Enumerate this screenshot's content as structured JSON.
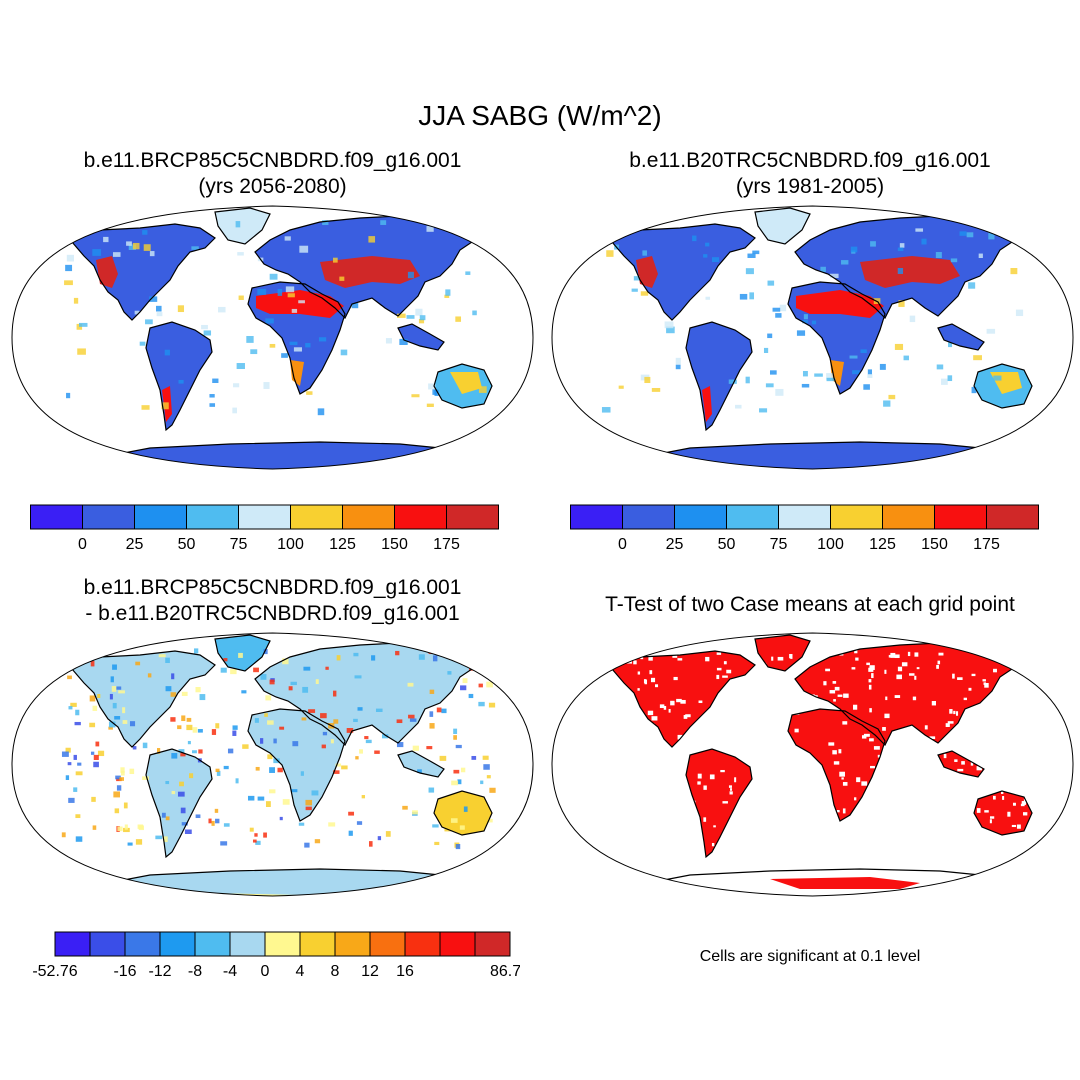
{
  "main_title": "JJA SABG (W/m^2)",
  "panels": [
    {
      "id": "case1",
      "title_line1": "b.e11.BRCP85C5CNBDRD.f09_g16.001",
      "title_line2": "(yrs 2056-2080)"
    },
    {
      "id": "case2",
      "title_line1": "b.e11.B20TRC5CNBDRD.f09_g16.001",
      "title_line2": "(yrs 1981-2005)"
    },
    {
      "id": "diff",
      "title_line1": "b.e11.BRCP85C5CNBDRD.f09_g16.001",
      "title_line2": "- b.e11.B20TRC5CNBDRD.f09_g16.001"
    },
    {
      "id": "ttest",
      "title_line1": "T-Test of two Case means at each grid point"
    }
  ],
  "colorbar_main": {
    "colors": [
      "#3a1ff5",
      "#3a5ee0",
      "#1e90f0",
      "#4fbcf0",
      "#cfeaf8",
      "#f8d030",
      "#f89010",
      "#f81010",
      "#d02828"
    ],
    "labels": [
      "0",
      "25",
      "50",
      "75",
      "100",
      "125",
      "150",
      "175"
    ]
  },
  "colorbar_diff": {
    "colors": [
      "#3a1ff5",
      "#3a4ee8",
      "#3a78e8",
      "#1e9af0",
      "#4fbcf0",
      "#a8d8f0",
      "#fff890",
      "#f8d030",
      "#f8a818",
      "#f87010",
      "#f83010",
      "#f81010",
      "#d02828"
    ],
    "labels": [
      "-52.76",
      "-16",
      "-12",
      "-8",
      "-4",
      "0",
      "4",
      "8",
      "12",
      "16",
      "86.74"
    ]
  },
  "note": "Cells are significant at 0.1 level"
}
